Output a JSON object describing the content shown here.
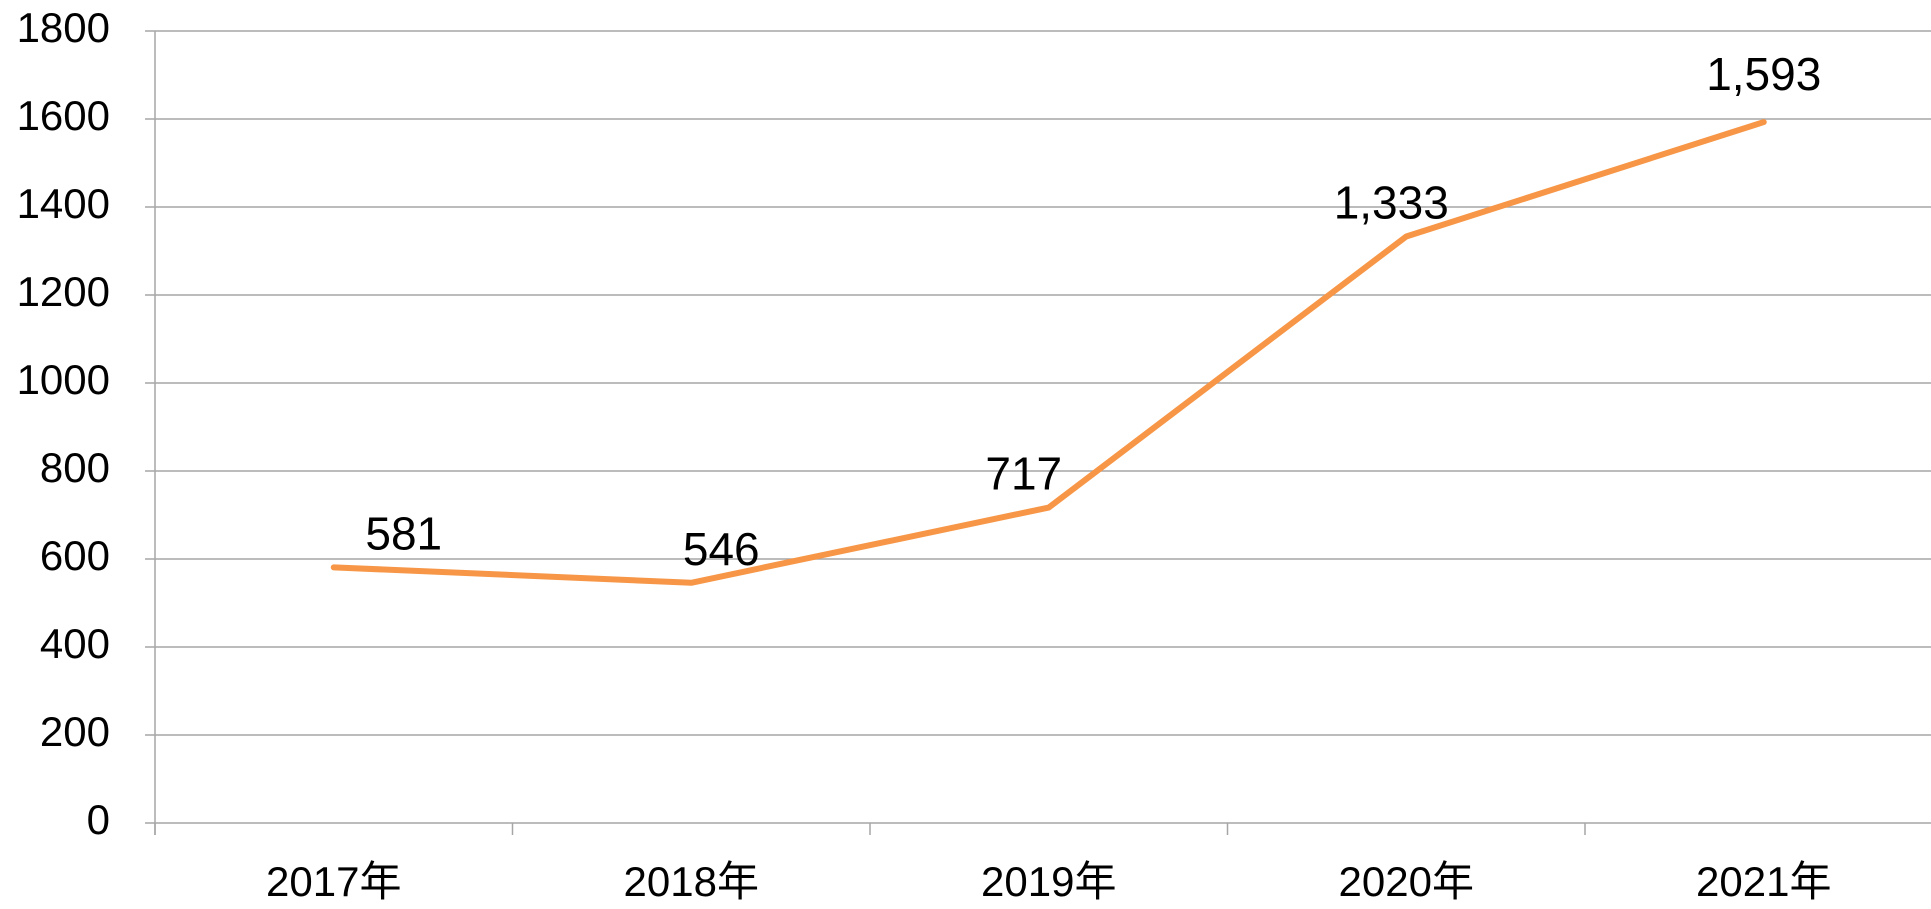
{
  "chart_data": {
    "type": "line",
    "categories": [
      "2017年",
      "2018年",
      "2019年",
      "2020年",
      "2021年"
    ],
    "values": [
      581,
      546,
      717,
      1333,
      1593
    ],
    "value_labels": [
      "581",
      "546",
      "717",
      "1,333",
      "1,593"
    ],
    "color": "#f79646",
    "ylim": [
      0,
      1800
    ],
    "yticks": [
      0,
      200,
      400,
      600,
      800,
      1000,
      1200,
      1400,
      1600,
      1800
    ],
    "grid": true
  }
}
